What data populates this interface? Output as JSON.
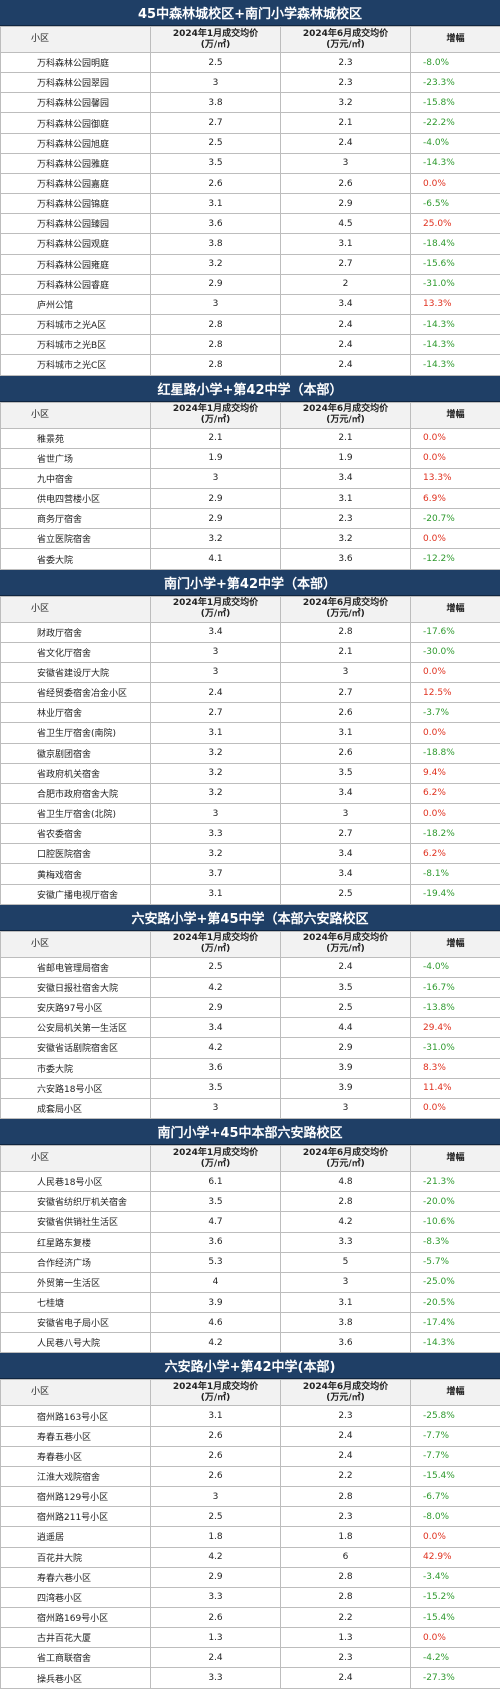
{
  "headers": {
    "name": "小区",
    "jan": [
      "2024年1月成交均价",
      "(万/㎡)"
    ],
    "jun": [
      "2024年6月成交均价",
      "(万元/㎡)"
    ],
    "change": "增幅"
  },
  "sections": [
    {
      "title": "45中森林城校区+南门小学森林城校区",
      "rows": [
        {
          "name": "万科森林公园明庭",
          "jan": "2.5",
          "jun": "2.3",
          "change": "-8.0%"
        },
        {
          "name": "万科森林公园翠园",
          "jan": "3",
          "jun": "2.3",
          "change": "-23.3%"
        },
        {
          "name": "万科森林公园馨园",
          "jan": "3.8",
          "jun": "3.2",
          "change": "-15.8%"
        },
        {
          "name": "万科森林公园御庭",
          "jan": "2.7",
          "jun": "2.1",
          "change": "-22.2%"
        },
        {
          "name": "万科森林公园旭庭",
          "jan": "2.5",
          "jun": "2.4",
          "change": "-4.0%"
        },
        {
          "name": "万科森林公园雅庭",
          "jan": "3.5",
          "jun": "3",
          "change": "-14.3%"
        },
        {
          "name": "万科森林公园嘉庭",
          "jan": "2.6",
          "jun": "2.6",
          "change": "0.0%"
        },
        {
          "name": "万科森林公园锦庭",
          "jan": "3.1",
          "jun": "2.9",
          "change": "-6.5%"
        },
        {
          "name": "万科森林公园臻园",
          "jan": "3.6",
          "jun": "4.5",
          "change": "25.0%"
        },
        {
          "name": "万科森林公园观庭",
          "jan": "3.8",
          "jun": "3.1",
          "change": "-18.4%"
        },
        {
          "name": "万科森林公园雍庭",
          "jan": "3.2",
          "jun": "2.7",
          "change": "-15.6%"
        },
        {
          "name": "万科森林公园睿庭",
          "jan": "2.9",
          "jun": "2",
          "change": "-31.0%"
        },
        {
          "name": "庐州公馆",
          "jan": "3",
          "jun": "3.4",
          "change": "13.3%"
        },
        {
          "name": "万科城市之光A区",
          "jan": "2.8",
          "jun": "2.4",
          "change": "-14.3%"
        },
        {
          "name": "万科城市之光B区",
          "jan": "2.8",
          "jun": "2.4",
          "change": "-14.3%"
        },
        {
          "name": "万科城市之光C区",
          "jan": "2.8",
          "jun": "2.4",
          "change": "-14.3%"
        }
      ]
    },
    {
      "title": "红星路小学+第42中学（本部）",
      "rows": [
        {
          "name": "稚景苑",
          "jan": "2.1",
          "jun": "2.1",
          "change": "0.0%"
        },
        {
          "name": "省世广场",
          "jan": "1.9",
          "jun": "1.9",
          "change": "0.0%"
        },
        {
          "name": "九中宿舍",
          "jan": "3",
          "jun": "3.4",
          "change": "13.3%"
        },
        {
          "name": "供电四营楼小区",
          "jan": "2.9",
          "jun": "3.1",
          "change": "6.9%"
        },
        {
          "name": "商务厅宿舍",
          "jan": "2.9",
          "jun": "2.3",
          "change": "-20.7%"
        },
        {
          "name": "省立医院宿舍",
          "jan": "3.2",
          "jun": "3.2",
          "change": "0.0%"
        },
        {
          "name": "省委大院",
          "jan": "4.1",
          "jun": "3.6",
          "change": "-12.2%"
        }
      ]
    },
    {
      "title": "南门小学+第42中学（本部）",
      "rows": [
        {
          "name": "财政厅宿舍",
          "jan": "3.4",
          "jun": "2.8",
          "change": "-17.6%"
        },
        {
          "name": "省文化厅宿舍",
          "jan": "3",
          "jun": "2.1",
          "change": "-30.0%"
        },
        {
          "name": "安徽省建设厅大院",
          "jan": "3",
          "jun": "3",
          "change": "0.0%"
        },
        {
          "name": "省经贸委宿舍冶金小区",
          "jan": "2.4",
          "jun": "2.7",
          "change": "12.5%"
        },
        {
          "name": "林业厅宿舍",
          "jan": "2.7",
          "jun": "2.6",
          "change": "-3.7%"
        },
        {
          "name": "省卫生厅宿舍(南院)",
          "jan": "3.1",
          "jun": "3.1",
          "change": "0.0%"
        },
        {
          "name": "徽京剧团宿舍",
          "jan": "3.2",
          "jun": "2.6",
          "change": "-18.8%"
        },
        {
          "name": "省政府机关宿舍",
          "jan": "3.2",
          "jun": "3.5",
          "change": "9.4%"
        },
        {
          "name": "合肥市政府宿舍大院",
          "jan": "3.2",
          "jun": "3.4",
          "change": "6.2%"
        },
        {
          "name": "省卫生厅宿舍(北院)",
          "jan": "3",
          "jun": "3",
          "change": "0.0%"
        },
        {
          "name": "省农委宿舍",
          "jan": "3.3",
          "jun": "2.7",
          "change": "-18.2%"
        },
        {
          "name": "口腔医院宿舍",
          "jan": "3.2",
          "jun": "3.4",
          "change": "6.2%"
        },
        {
          "name": "黄梅戏宿舍",
          "jan": "3.7",
          "jun": "3.4",
          "change": "-8.1%"
        },
        {
          "name": "安徽广播电视厅宿舍",
          "jan": "3.1",
          "jun": "2.5",
          "change": "-19.4%"
        }
      ]
    },
    {
      "title": "六安路小学+第45中学（本部六安路校区",
      "rows": [
        {
          "name": "省邮电管理局宿舍",
          "jan": "2.5",
          "jun": "2.4",
          "change": "-4.0%"
        },
        {
          "name": "安徽日报社宿舍大院",
          "jan": "4.2",
          "jun": "3.5",
          "change": "-16.7%"
        },
        {
          "name": "安庆路97号小区",
          "jan": "2.9",
          "jun": "2.5",
          "change": "-13.8%"
        },
        {
          "name": "公安局机关第一生活区",
          "jan": "3.4",
          "jun": "4.4",
          "change": "29.4%"
        },
        {
          "name": "安徽省话剧院宿舍区",
          "jan": "4.2",
          "jun": "2.9",
          "change": "-31.0%"
        },
        {
          "name": "市委大院",
          "jan": "3.6",
          "jun": "3.9",
          "change": "8.3%"
        },
        {
          "name": "六安路18号小区",
          "jan": "3.5",
          "jun": "3.9",
          "change": "11.4%"
        },
        {
          "name": "成套局小区",
          "jan": "3",
          "jun": "3",
          "change": "0.0%"
        }
      ]
    },
    {
      "title": "南门小学+45中本部六安路校区",
      "rows": [
        {
          "name": "人民巷18号小区",
          "jan": "6.1",
          "jun": "4.8",
          "change": "-21.3%"
        },
        {
          "name": "安徽省纺织厅机关宿舍",
          "jan": "3.5",
          "jun": "2.8",
          "change": "-20.0%"
        },
        {
          "name": "安徽省供销社生活区",
          "jan": "4.7",
          "jun": "4.2",
          "change": "-10.6%"
        },
        {
          "name": "红星路东复楼",
          "jan": "3.6",
          "jun": "3.3",
          "change": "-8.3%"
        },
        {
          "name": "合作经济广场",
          "jan": "5.3",
          "jun": "5",
          "change": "-5.7%"
        },
        {
          "name": "外贸第一生活区",
          "jan": "4",
          "jun": "3",
          "change": "-25.0%"
        },
        {
          "name": "七桂塘",
          "jan": "3.9",
          "jun": "3.1",
          "change": "-20.5%"
        },
        {
          "name": "安徽省电子局小区",
          "jan": "4.6",
          "jun": "3.8",
          "change": "-17.4%"
        },
        {
          "name": "人民巷八号大院",
          "jan": "4.2",
          "jun": "3.6",
          "change": "-14.3%"
        }
      ]
    },
    {
      "title": "六安路小学+第42中学(本部)",
      "rows": [
        {
          "name": "宿州路163号小区",
          "jan": "3.1",
          "jun": "2.3",
          "change": "-25.8%"
        },
        {
          "name": "寿春五巷小区",
          "jan": "2.6",
          "jun": "2.4",
          "change": "-7.7%"
        },
        {
          "name": "寿春巷小区",
          "jan": "2.6",
          "jun": "2.4",
          "change": "-7.7%"
        },
        {
          "name": "江淮大戏院宿舍",
          "jan": "2.6",
          "jun": "2.2",
          "change": "-15.4%"
        },
        {
          "name": "宿州路129号小区",
          "jan": "3",
          "jun": "2.8",
          "change": "-6.7%"
        },
        {
          "name": "宿州路211号小区",
          "jan": "2.5",
          "jun": "2.3",
          "change": "-8.0%"
        },
        {
          "name": "逍遥居",
          "jan": "1.8",
          "jun": "1.8",
          "change": "0.0%"
        },
        {
          "name": "百花井大院",
          "jan": "4.2",
          "jun": "6",
          "change": "42.9%"
        },
        {
          "name": "寿春六巷小区",
          "jan": "2.9",
          "jun": "2.8",
          "change": "-3.4%"
        },
        {
          "name": "四湾巷小区",
          "jan": "3.3",
          "jun": "2.8",
          "change": "-15.2%"
        },
        {
          "name": "宿州路169号小区",
          "jan": "2.6",
          "jun": "2.2",
          "change": "-15.4%"
        },
        {
          "name": "古井百花大厦",
          "jan": "1.3",
          "jun": "1.3",
          "change": "0.0%"
        },
        {
          "name": "省工商联宿舍",
          "jan": "2.4",
          "jun": "2.3",
          "change": "-4.2%"
        },
        {
          "name": "操兵巷小区",
          "jan": "3.3",
          "jun": "2.4",
          "change": "-27.3%"
        }
      ]
    }
  ]
}
